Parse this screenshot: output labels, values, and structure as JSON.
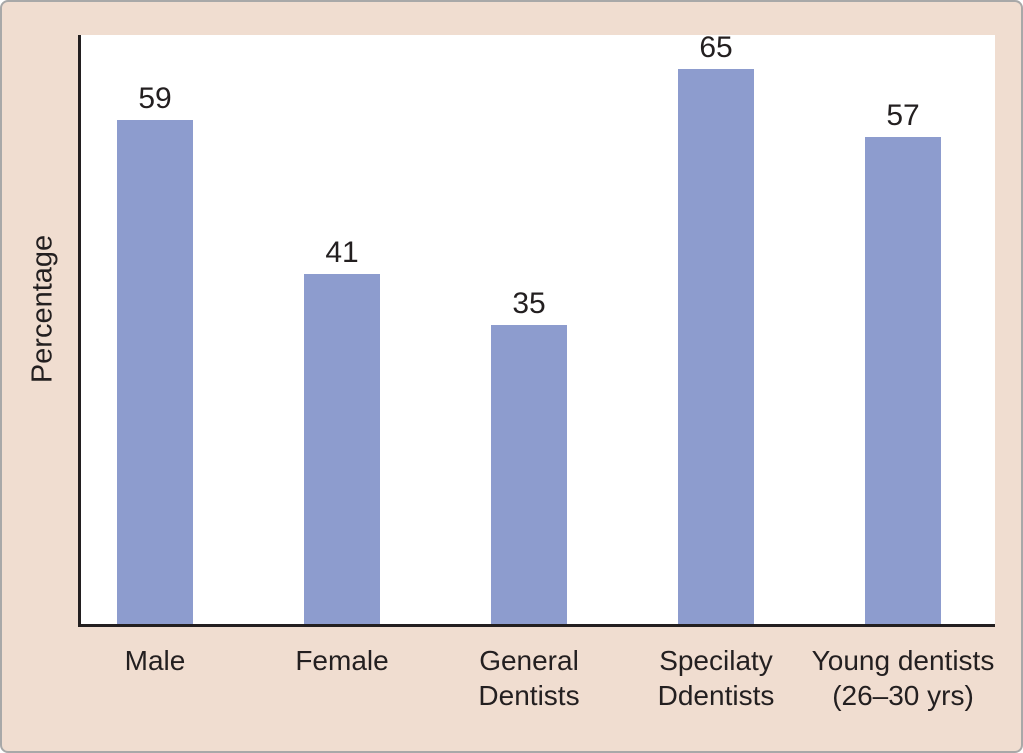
{
  "chart_data": {
    "type": "bar",
    "categories": [
      {
        "lines": [
          "Male"
        ]
      },
      {
        "lines": [
          "Female"
        ]
      },
      {
        "lines": [
          "General",
          "Dentists"
        ]
      },
      {
        "lines": [
          "Specilaty",
          "Ddentists"
        ]
      },
      {
        "lines": [
          "Young dentists",
          "(26–30 yrs)"
        ]
      }
    ],
    "values": [
      59,
      41,
      35,
      65,
      57
    ],
    "value_labels": [
      "59",
      "41",
      "35",
      "65",
      "57"
    ],
    "title": "",
    "xlabel": "",
    "ylabel": "Percentage",
    "ylim": [
      0,
      69
    ],
    "grid": false,
    "legend": null,
    "colors": {
      "bar": "#8d9cce",
      "background": "#f0ddd0",
      "plot_background": "#ffffff",
      "axis": "#231f20",
      "text": "#231f20",
      "border": "#a8a8a8"
    }
  }
}
